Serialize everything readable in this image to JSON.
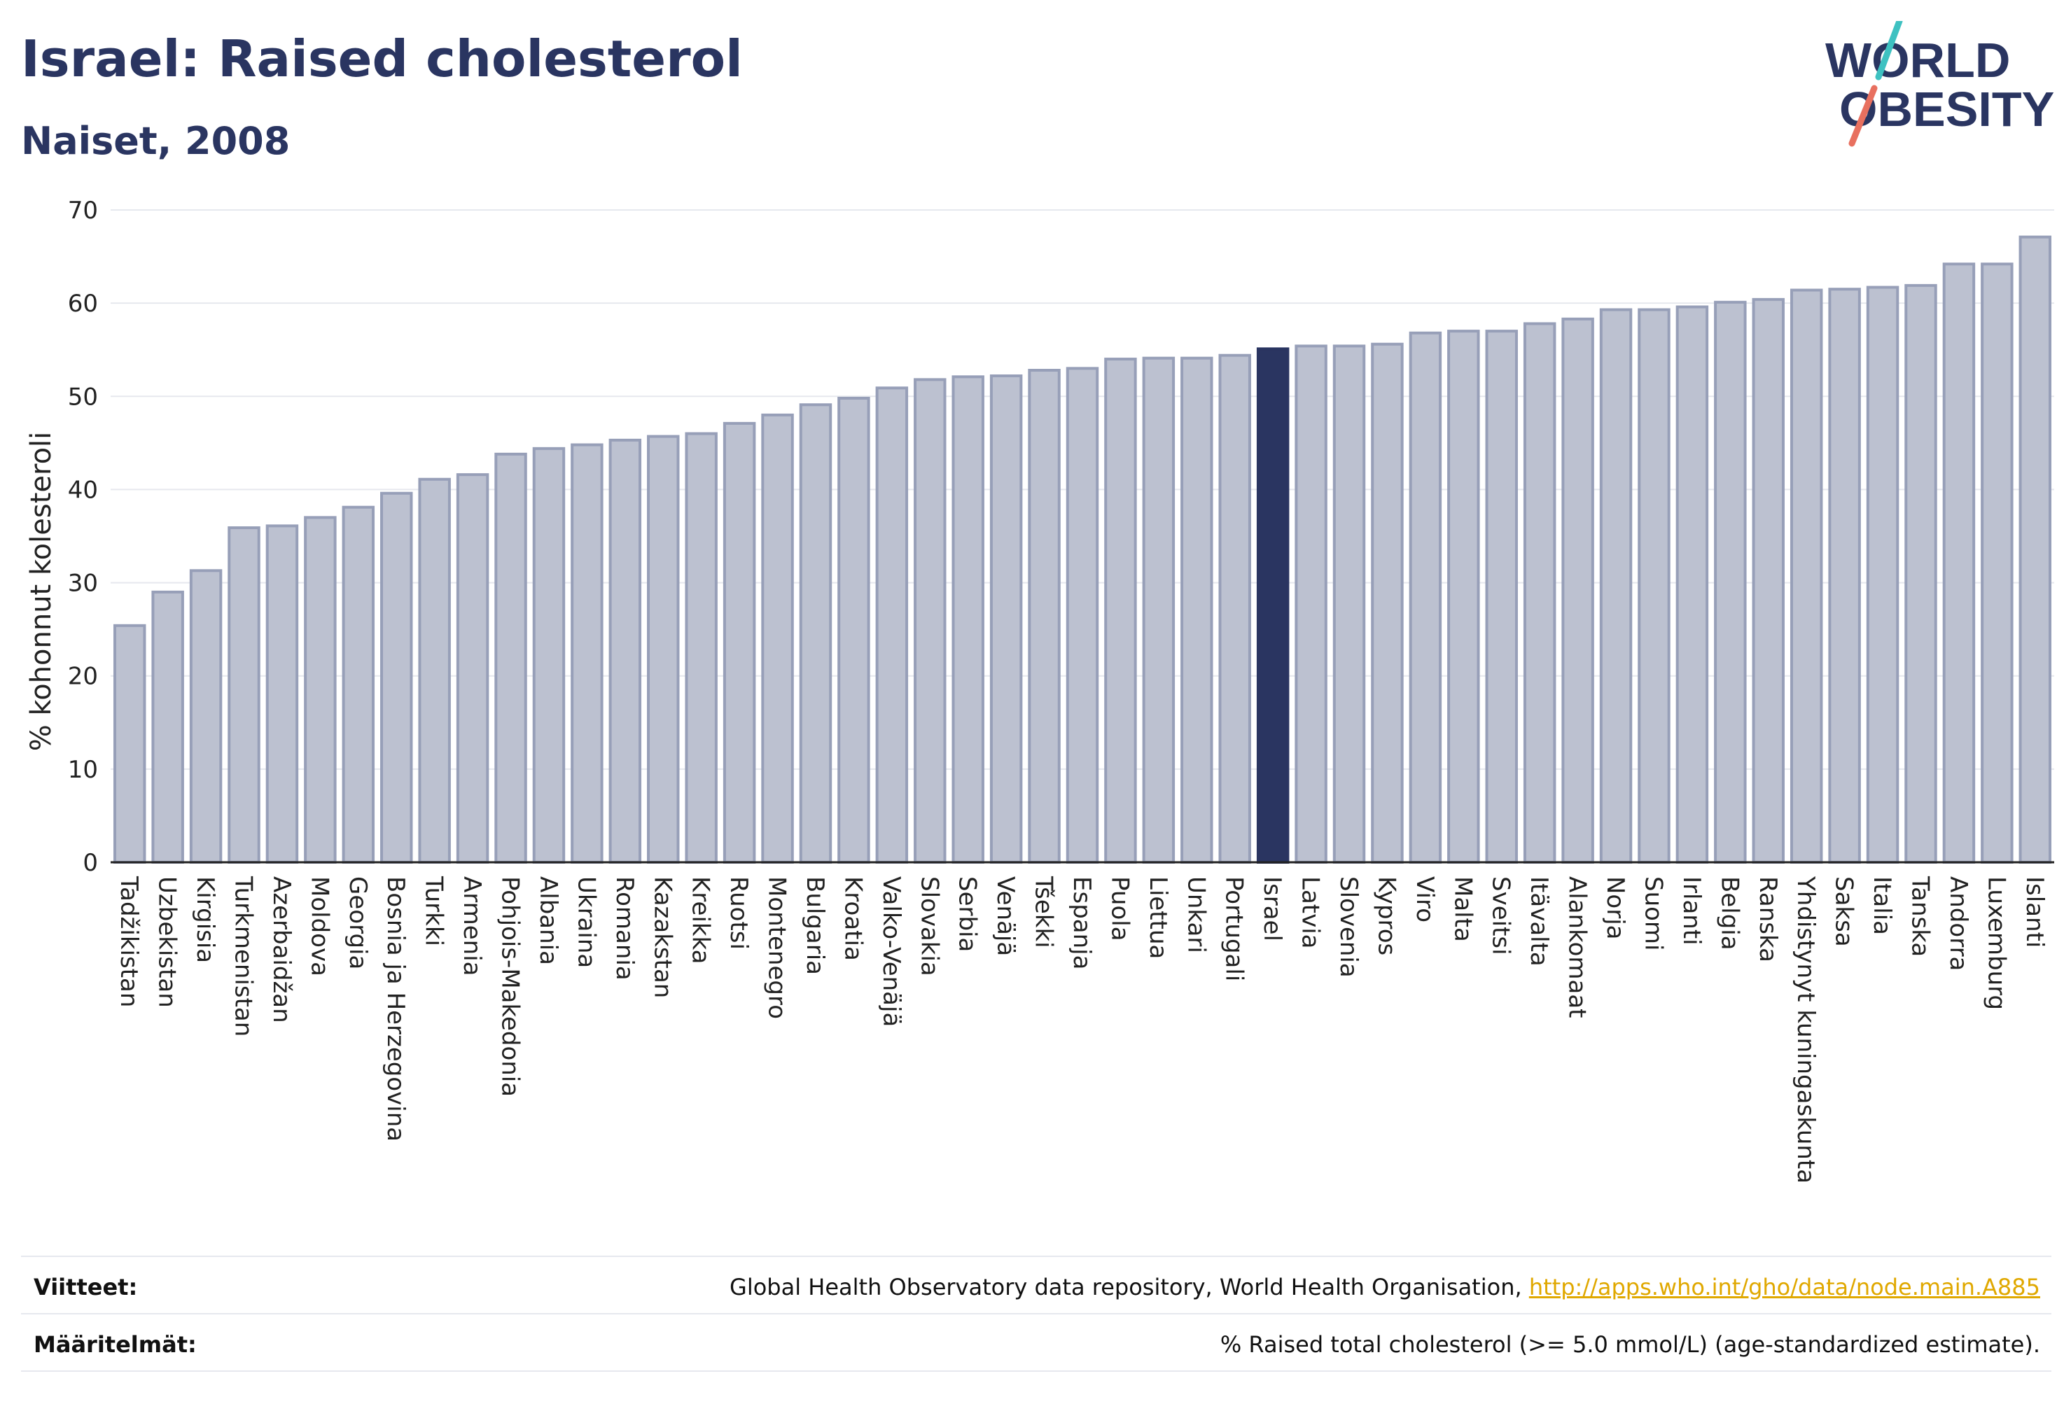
{
  "header": {
    "title": "Israel: Raised cholesterol",
    "subtitle": "Naiset, 2008"
  },
  "logo": {
    "line1": "WORLD",
    "line2": "OBESITY"
  },
  "colors": {
    "bar": "#bcc1d0",
    "bar_stroke": "#979fb8",
    "highlight": "#2a3561",
    "grid": "#e6e8ee",
    "logo_text": "#2a3561",
    "logo_teal": "#3ec1c1",
    "logo_coral": "#e8705f"
  },
  "chart_data": {
    "type": "bar",
    "ylabel": "% kohonnut kolesteroli",
    "ylim": [
      0,
      70
    ],
    "yticks": [
      0,
      10,
      20,
      30,
      40,
      50,
      60,
      70
    ],
    "grid": true,
    "highlight": "Israel",
    "categories": [
      "Tadžikistan",
      "Uzbekistan",
      "Kirgisia",
      "Turkmenistan",
      "Azerbaidžan",
      "Moldova",
      "Georgia",
      "Bosnia ja Herzegovina",
      "Turkki",
      "Armenia",
      "Pohjois-Makedonia",
      "Albania",
      "Ukraina",
      "Romania",
      "Kazakstan",
      "Kreikka",
      "Ruotsi",
      "Montenegro",
      "Bulgaria",
      "Kroatia",
      "Valko-Venäjä",
      "Slovakia",
      "Serbia",
      "Venäjä",
      "Tšekki",
      "Espanja",
      "Puola",
      "Liettua",
      "Unkari",
      "Portugali",
      "Israel",
      "Latvia",
      "Slovenia",
      "Kypros",
      "Viro",
      "Malta",
      "Sveitsi",
      "Itävalta",
      "Alankomaat",
      "Norja",
      "Suomi",
      "Irlanti",
      "Belgia",
      "Ranska",
      "Yhdistynyt kuningaskunta",
      "Saksa",
      "Italia",
      "Tanska",
      "Andorra",
      "Luxemburg",
      "Islanti"
    ],
    "values": [
      25.4,
      29.0,
      31.3,
      35.9,
      36.1,
      37.0,
      38.1,
      39.6,
      41.1,
      41.6,
      43.8,
      44.4,
      44.8,
      45.3,
      45.7,
      46.0,
      47.1,
      48.0,
      49.1,
      49.8,
      50.9,
      51.8,
      52.1,
      52.2,
      52.8,
      53.0,
      54.0,
      54.1,
      54.1,
      54.4,
      55.1,
      55.4,
      55.4,
      55.6,
      56.8,
      57.0,
      57.0,
      57.8,
      58.3,
      59.3,
      59.3,
      59.6,
      60.1,
      60.4,
      61.4,
      61.5,
      61.7,
      61.9,
      64.2,
      64.2,
      67.1
    ]
  },
  "footer": {
    "sources_label": "Viitteet:",
    "sources_text": "Global Health Observatory data repository, World Health Organisation, ",
    "sources_link": "http://apps.who.int/gho/data/node.main.A885",
    "definitions_label": "Määritelmät:",
    "definitions_text": "% Raised total cholesterol (>= 5.0 mmol/L) (age-standardized estimate)."
  }
}
